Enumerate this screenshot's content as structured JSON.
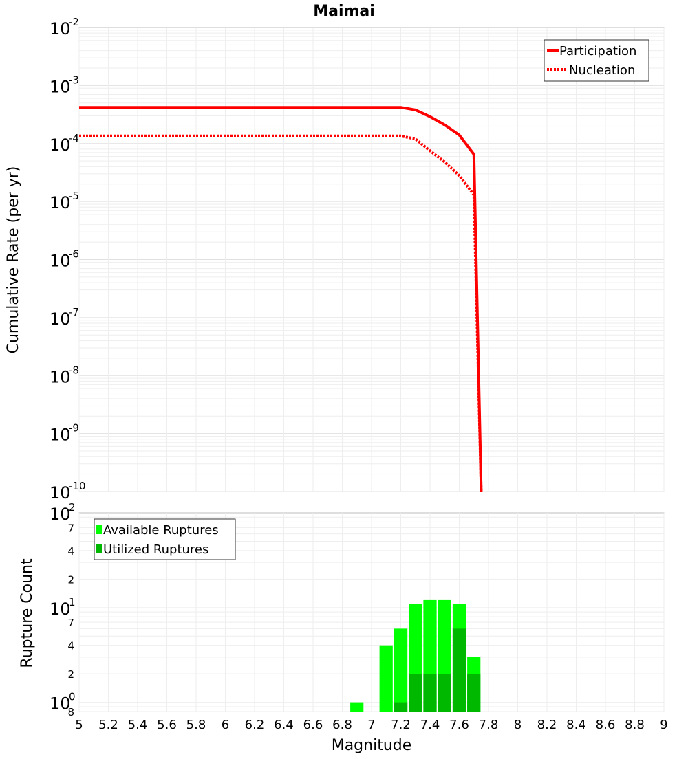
{
  "chart_data": [
    {
      "type": "line",
      "title": "Maimai",
      "xlabel": "",
      "ylabel": "Cumulative Rate (per yr)",
      "xlim": [
        5,
        9
      ],
      "ylim": [
        1e-10,
        0.01
      ],
      "yscale": "log",
      "ytick_exponents": [
        "-2",
        "-3",
        "-4",
        "-5",
        "-6",
        "-7",
        "-8",
        "-9",
        "-10"
      ],
      "ytick_base": "10",
      "legend": {
        "placement": "top-right",
        "entries": [
          "Participation",
          "Nucleation"
        ]
      },
      "series": [
        {
          "name": "Participation",
          "style": "solid",
          "color": "#ff0000",
          "points": [
            [
              5.0,
              0.00042
            ],
            [
              7.2,
              0.00042
            ],
            [
              7.3,
              0.00038
            ],
            [
              7.4,
              0.00029
            ],
            [
              7.5,
              0.00021
            ],
            [
              7.6,
              0.00014
            ],
            [
              7.7,
              6.5e-05
            ],
            [
              7.75,
              1e-10
            ]
          ]
        },
        {
          "name": "Nucleation",
          "style": "dotted",
          "color": "#ff0000",
          "points": [
            [
              5.0,
              0.000135
            ],
            [
              7.2,
              0.000135
            ],
            [
              7.3,
              0.00012
            ],
            [
              7.4,
              7.5e-05
            ],
            [
              7.5,
              4.8e-05
            ],
            [
              7.6,
              2.8e-05
            ],
            [
              7.7,
              1.3e-05
            ],
            [
              7.75,
              1e-10
            ]
          ]
        }
      ]
    },
    {
      "type": "bar",
      "title": "",
      "xlabel": "Magnitude",
      "ylabel": "Rupture Count",
      "xlim": [
        5,
        9
      ],
      "ylim": [
        0.8,
        100
      ],
      "yscale": "log",
      "x_ticks": [
        "5",
        "5.2",
        "5.4",
        "5.6",
        "5.8",
        "6",
        "6.2",
        "6.4",
        "6.6",
        "6.8",
        "7",
        "7.2",
        "7.4",
        "7.6",
        "7.8",
        "8",
        "8.2",
        "8.4",
        "8.6",
        "8.8",
        "9"
      ],
      "major_ticks": [
        {
          "value": 100,
          "base": "10",
          "exp": "2"
        },
        {
          "value": 10,
          "base": "10",
          "exp": "1"
        },
        {
          "value": 1,
          "base": "10",
          "exp": "0"
        }
      ],
      "minor_tick_labels": [
        {
          "value": 70,
          "label": "7"
        },
        {
          "value": 40,
          "label": "4"
        },
        {
          "value": 20,
          "label": "2"
        },
        {
          "value": 7,
          "label": "7"
        },
        {
          "value": 4,
          "label": "4"
        },
        {
          "value": 2,
          "label": "2"
        },
        {
          "value": 0.8,
          "label": "8"
        }
      ],
      "legend": {
        "placement": "top-left",
        "entries": [
          "Available Ruptures",
          "Utilized Ruptures"
        ]
      },
      "series": [
        {
          "name": "Available Ruptures",
          "color": "#00ff00",
          "bins": [
            6.9,
            7.1,
            7.2,
            7.3,
            7.4,
            7.5,
            7.6,
            7.7
          ],
          "values": [
            1,
            4,
            6,
            11,
            12,
            12,
            11,
            3
          ]
        },
        {
          "name": "Utilized Ruptures",
          "color": "#00b800",
          "bins": [
            7.2,
            7.3,
            7.4,
            7.5,
            7.6,
            7.7
          ],
          "values": [
            1,
            2,
            2,
            2,
            6,
            2
          ]
        }
      ],
      "bin_width": 0.1
    }
  ]
}
